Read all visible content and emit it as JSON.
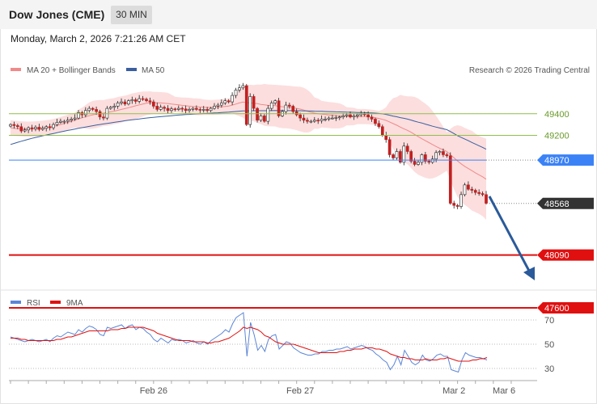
{
  "header": {
    "title": "Dow Jones (CME)",
    "timeframe": "30 MIN",
    "datetime": "Monday, March 2, 2026 7:21:26 AM CET"
  },
  "legend": {
    "bollinger": "MA 20 + Bollinger Bands",
    "ma50": "MA 50",
    "credit": "Research © 2026 Trading Central",
    "rsi": "RSI",
    "rsi_ma": "9MA"
  },
  "colors": {
    "candle": "#c22020",
    "bollinger": "#f08a8a",
    "ma50": "#3a5fa0",
    "green_level": "#8fbf4a",
    "blue_level": "#3b82f6",
    "red_level": "#e01010",
    "current": "#333333",
    "arrow": "#2a5a9a",
    "rsi": "#5b85d6",
    "rsi_ma": "#e01010"
  },
  "chart_data": [
    {
      "type": "candlestick",
      "name": "price",
      "ylim": [
        47540,
        50140
      ],
      "x_ticks": [
        "Feb 26",
        "Feb 27",
        "Mar 2",
        "Mar 6"
      ],
      "levels": [
        {
          "value": 49400,
          "label": "49400",
          "kind": "resistance-minor"
        },
        {
          "value": 49200,
          "label": "49200",
          "kind": "resistance-minor"
        },
        {
          "value": 48970,
          "label": "48970",
          "kind": "pivot"
        },
        {
          "value": 48568,
          "label": "48568",
          "kind": "current"
        },
        {
          "value": 48090,
          "label": "48090",
          "kind": "target"
        },
        {
          "value": 47600,
          "label": "47600",
          "kind": "target"
        }
      ],
      "close": [
        49300,
        49290,
        49280,
        49240,
        49250,
        49270,
        49260,
        49275,
        49255,
        49265,
        49280,
        49270,
        49300,
        49320,
        49330,
        49330,
        49340,
        49350,
        49360,
        49410,
        49390,
        49430,
        49450,
        49440,
        49420,
        49370,
        49360,
        49450,
        49460,
        49470,
        49500,
        49510,
        49490,
        49520,
        49530,
        49515,
        49540,
        49535,
        49520,
        49510,
        49470,
        49440,
        49460,
        49450,
        49430,
        49445,
        49440,
        49450,
        49445,
        49430,
        49440,
        49450,
        49440,
        49435,
        49440,
        49430,
        49450,
        49470,
        49480,
        49500,
        49520,
        49510,
        49570,
        49620,
        49640,
        49660,
        49300,
        49560,
        49450,
        49340,
        49380,
        49330,
        49450,
        49500,
        49520,
        49380,
        49420,
        49480,
        49470,
        49420,
        49390,
        49360,
        49340,
        49330,
        49330,
        49340,
        49335,
        49350,
        49350,
        49360,
        49360,
        49365,
        49370,
        49380,
        49390,
        49370,
        49380,
        49390,
        49400,
        49390,
        49370,
        49350,
        49310,
        49280,
        49200,
        49160,
        49020,
        48990,
        49050,
        48950,
        49100,
        49050,
        48960,
        48930,
        48950,
        49020,
        48960,
        48950,
        48980,
        49040,
        49050,
        49020,
        49010,
        48570,
        48550,
        48540,
        48650,
        48740,
        48700,
        48690,
        48670,
        48660,
        48650,
        48570
      ],
      "ma20": [
        49270,
        49265,
        49262,
        49260,
        49258,
        49257,
        49258,
        49260,
        49262,
        49265,
        49270,
        49275,
        49282,
        49290,
        49300,
        49310,
        49320,
        49330,
        49340,
        49352,
        49362,
        49372,
        49382,
        49390,
        49396,
        49402,
        49406,
        49412,
        49418,
        49424,
        49432,
        49440,
        49448,
        49456,
        49465,
        49474,
        49482,
        49490,
        49497,
        49500,
        49501,
        49501,
        49500,
        49498,
        49495,
        49490,
        49486,
        49482,
        49478,
        49474,
        49470,
        49467,
        49465,
        49463,
        49460,
        49459,
        49458,
        49459,
        49461,
        49464,
        49468,
        49472,
        49480,
        49490,
        49500,
        49508,
        49503,
        49500,
        49498,
        49493,
        49487,
        49482,
        49478,
        49476,
        49475,
        49469,
        49465,
        49463,
        49460,
        49455,
        49450,
        49443,
        49434,
        49424,
        49414,
        49406,
        49400,
        49396,
        49392,
        49388,
        49385,
        49382,
        49380,
        49378,
        49376,
        49375,
        49374,
        49374,
        49374,
        49374,
        49372,
        49369,
        49363,
        49356,
        49348,
        49338,
        49324,
        49308,
        49293,
        49276,
        49260,
        49246,
        49228,
        49208,
        49188,
        49168,
        49150,
        49132,
        49114,
        49096,
        49080,
        49065,
        49050,
        49020,
        48992,
        48962,
        48935,
        48912,
        48892,
        48872,
        48852,
        48833,
        48815,
        48793
      ],
      "ma50": [
        49115,
        49125,
        49135,
        49145,
        49154,
        49163,
        49172,
        49180,
        49188,
        49196,
        49203,
        49210,
        49217,
        49224,
        49231,
        49238,
        49245,
        49251,
        49258,
        49265,
        49271,
        49277,
        49283,
        49289,
        49295,
        49300,
        49305,
        49310,
        49315,
        49320,
        49325,
        49330,
        49335,
        49340,
        49344,
        49348,
        49352,
        49356,
        49360,
        49364,
        49367,
        49370,
        49373,
        49376,
        49379,
        49382,
        49385,
        49388,
        49390,
        49392,
        49394,
        49396,
        49398,
        49400,
        49402,
        49403,
        49405,
        49407,
        49409,
        49411,
        49413,
        49415,
        49418,
        49421,
        49424,
        49427,
        49427,
        49428,
        49428,
        49428,
        49428,
        49428,
        49428,
        49429,
        49430,
        49429,
        49429,
        49429,
        49429,
        49429,
        49428,
        49428,
        49427,
        49426,
        49425,
        49424,
        49423,
        49422,
        49421,
        49420,
        49419,
        49418,
        49417,
        49416,
        49415,
        49414,
        49413,
        49412,
        49411,
        49410,
        49409,
        49408,
        49406,
        49403,
        49399,
        49394,
        49386,
        49378,
        49372,
        49364,
        49358,
        49350,
        49341,
        49331,
        49322,
        49314,
        49304,
        49294,
        49284,
        49276,
        49268,
        49260,
        49252,
        49235,
        49216,
        49197,
        49180,
        49165,
        49150,
        49134,
        49119,
        49103,
        49088,
        49071
      ]
    },
    {
      "type": "line",
      "name": "rsi",
      "ylim": [
        22,
        80
      ],
      "y_ticks": [
        70,
        50,
        30
      ],
      "rsi": [
        56,
        55,
        54,
        53,
        52,
        53,
        54,
        53,
        52,
        53,
        54,
        52,
        55,
        57,
        56,
        58,
        60,
        59,
        58,
        62,
        60,
        63,
        65,
        64,
        62,
        58,
        57,
        64,
        63,
        64,
        65,
        66,
        63,
        65,
        66,
        62,
        64,
        63,
        60,
        58,
        54,
        52,
        55,
        53,
        51,
        54,
        53,
        54,
        53,
        51,
        52,
        53,
        51,
        50,
        52,
        50,
        53,
        55,
        57,
        59,
        62,
        60,
        67,
        72,
        74,
        76,
        40,
        68,
        58,
        45,
        49,
        44,
        54,
        57,
        58,
        46,
        49,
        52,
        51,
        47,
        45,
        43,
        42,
        41,
        41,
        42,
        42,
        44,
        44,
        45,
        45,
        46,
        46,
        47,
        48,
        46,
        47,
        48,
        49,
        48,
        46,
        45,
        42,
        40,
        37,
        35,
        29,
        33,
        40,
        33,
        45,
        40,
        35,
        33,
        35,
        41,
        37,
        36,
        38,
        41,
        42,
        40,
        40,
        29,
        28,
        27,
        37,
        43,
        41,
        40,
        39,
        39,
        38,
        37
      ],
      "rsi_ma": [
        55,
        55,
        55,
        54,
        54,
        53,
        53,
        53,
        53,
        53,
        53,
        53,
        53,
        54,
        54,
        55,
        56,
        56,
        57,
        58,
        59,
        60,
        61,
        61,
        61,
        61,
        61,
        61,
        62,
        62,
        62,
        63,
        63,
        64,
        64,
        64,
        64,
        64,
        63,
        62,
        61,
        59,
        58,
        57,
        56,
        55,
        54,
        53,
        53,
        53,
        53,
        52,
        52,
        52,
        52,
        51,
        51,
        52,
        52,
        53,
        54,
        55,
        57,
        59,
        61,
        64,
        63,
        64,
        63,
        62,
        60,
        57,
        56,
        54,
        52,
        51,
        50,
        50,
        50,
        50,
        49,
        48,
        47,
        46,
        45,
        44,
        43,
        43,
        43,
        43,
        43,
        43,
        44,
        44,
        45,
        45,
        46,
        46,
        46,
        47,
        47,
        47,
        46,
        46,
        45,
        44,
        42,
        41,
        40,
        39,
        39,
        38,
        38,
        37,
        37,
        37,
        38,
        37,
        37,
        37,
        38,
        38,
        39,
        38,
        37,
        36,
        36,
        36,
        36,
        37,
        37,
        38,
        38,
        39
      ]
    }
  ]
}
